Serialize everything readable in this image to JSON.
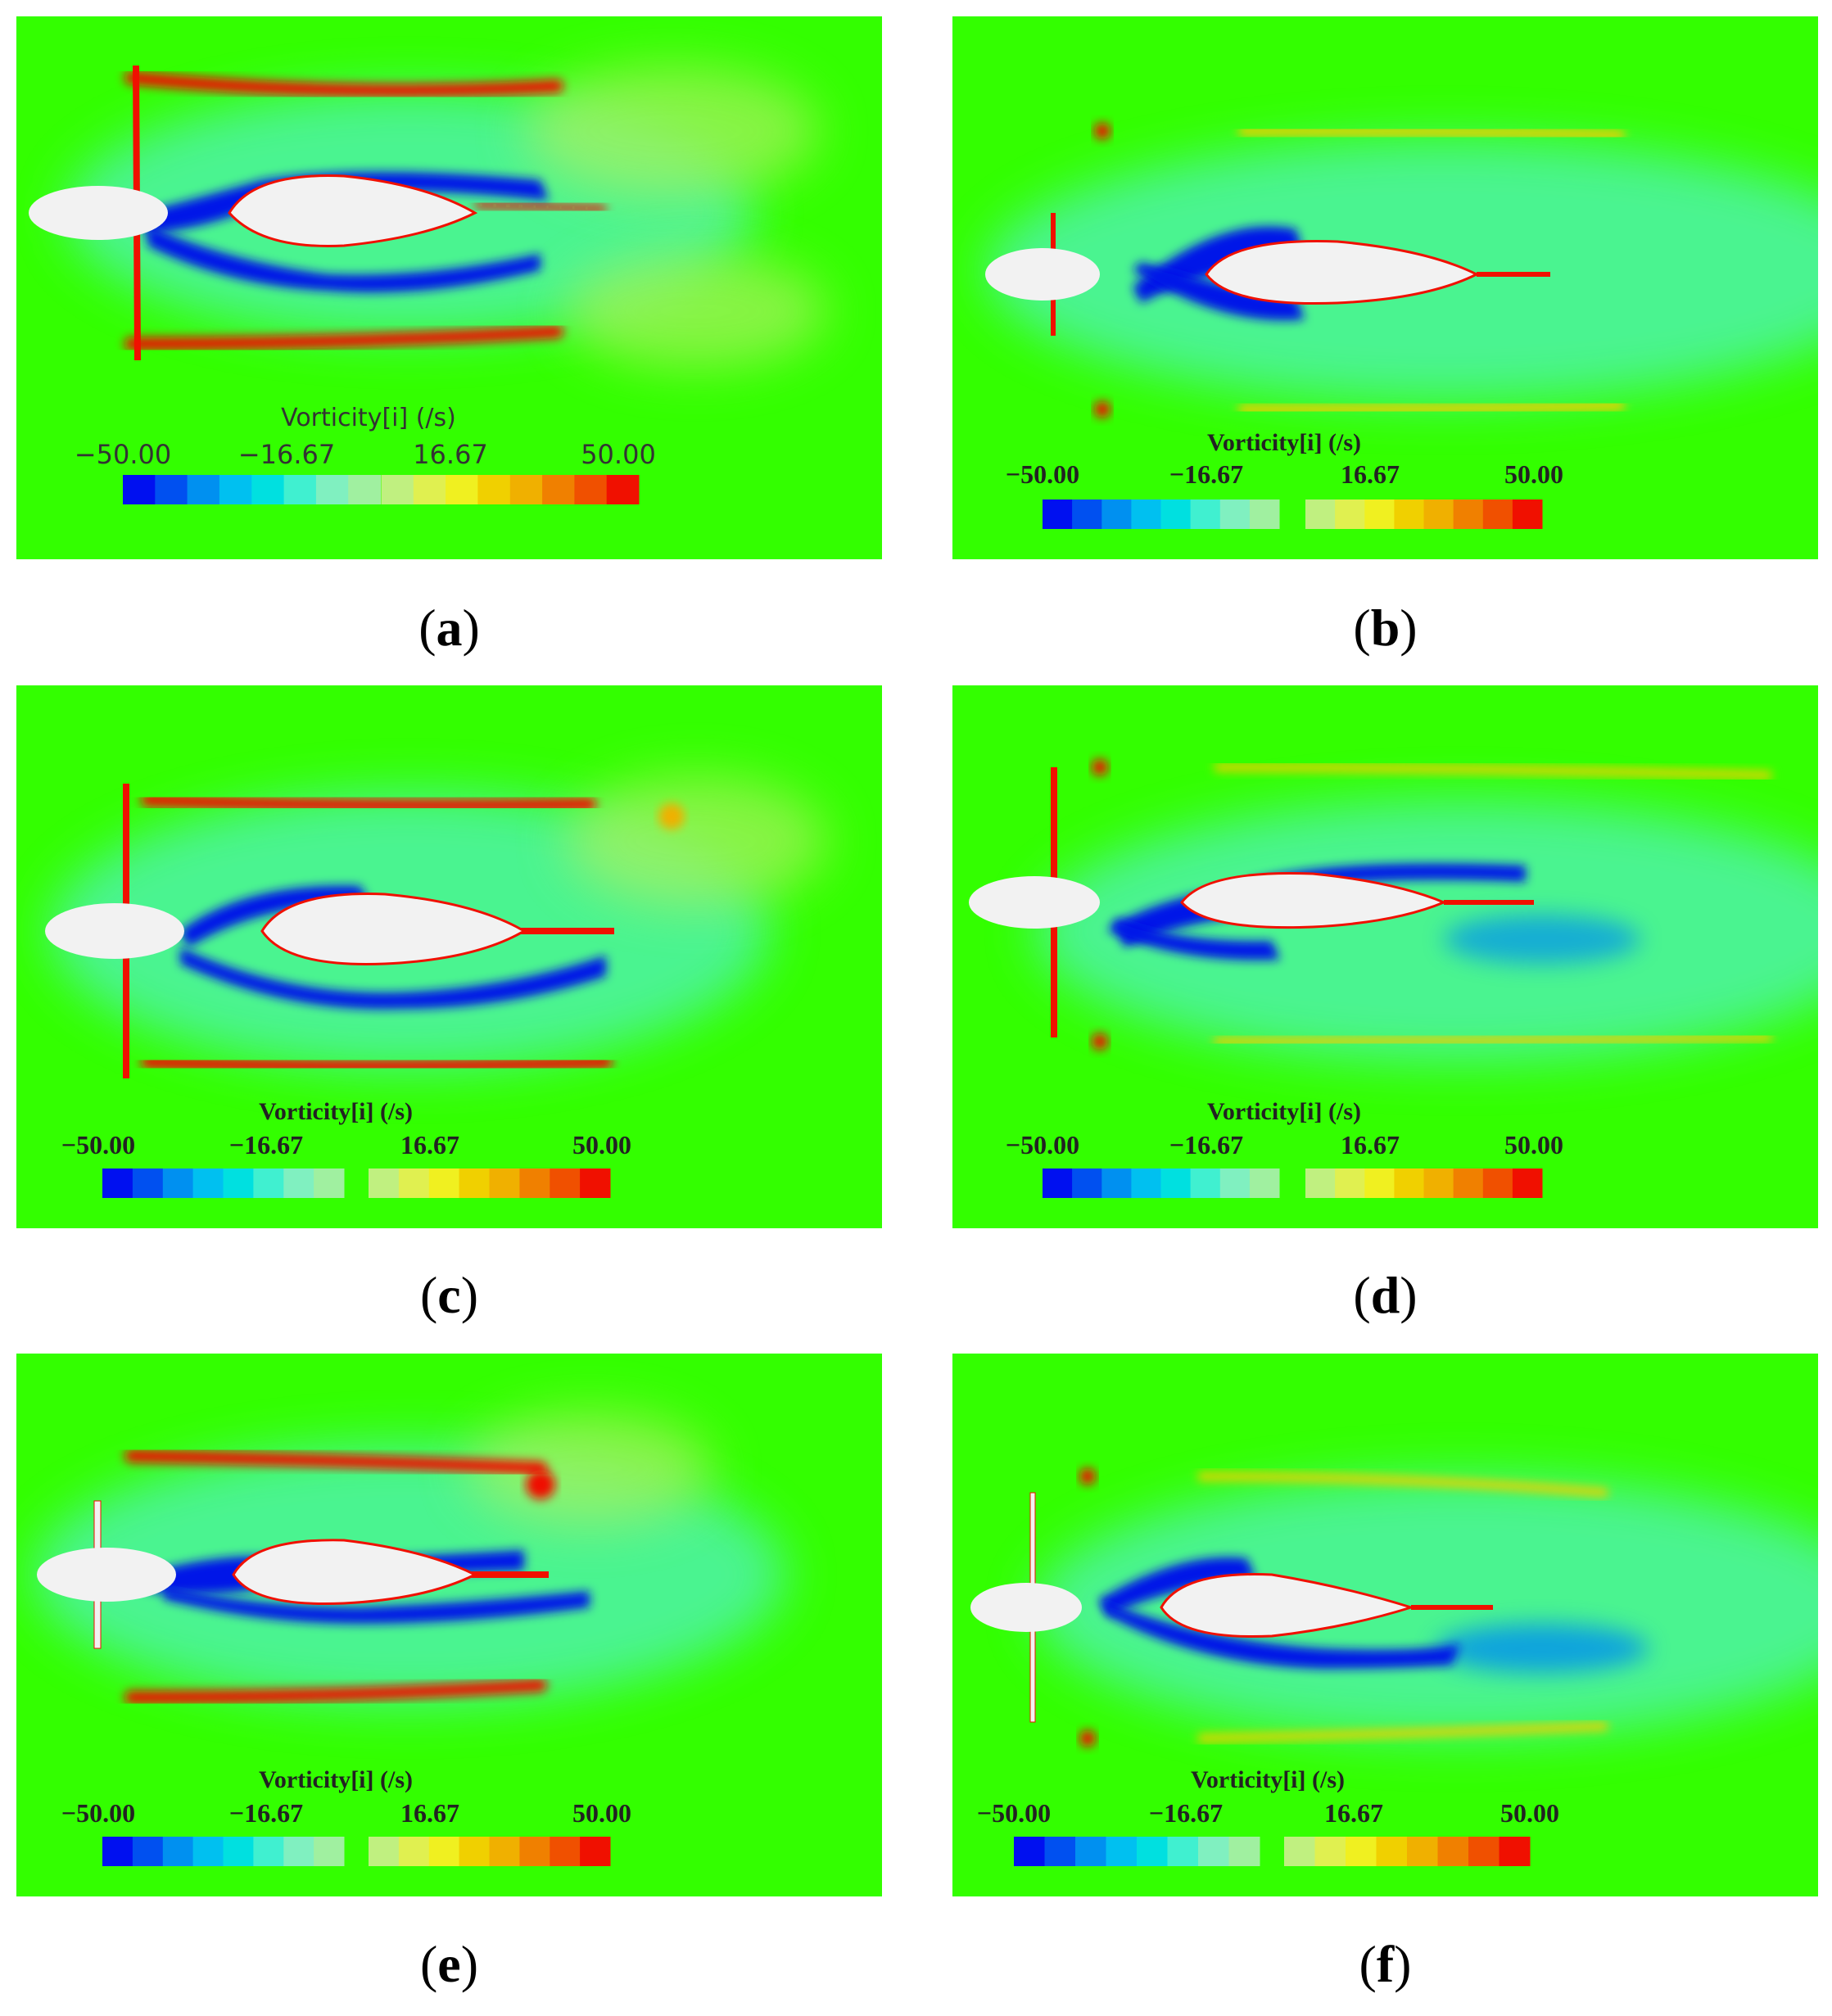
{
  "colorbar": {
    "title": "Vorticity[i] (/s)",
    "ticks": [
      "−50.00",
      "−16.67",
      "16.67",
      "50.00"
    ],
    "colors": [
      "#0010f0",
      "#0050f0",
      "#0090f0",
      "#00c0f0",
      "#00e0e0",
      "#40f0d0",
      "#80f0c0",
      "#a0f0a0",
      "#c0f080",
      "#e0f050",
      "#f0f020",
      "#f0d000",
      "#f0b000",
      "#f08000",
      "#f05000",
      "#f01000"
    ]
  },
  "colors": {
    "background": "#33ff00",
    "body": "#f2f2f2"
  },
  "panels": [
    {
      "caption": "a"
    },
    {
      "caption": "b"
    },
    {
      "caption": "c"
    },
    {
      "caption": "d"
    },
    {
      "caption": "e"
    },
    {
      "caption": "f"
    }
  ]
}
